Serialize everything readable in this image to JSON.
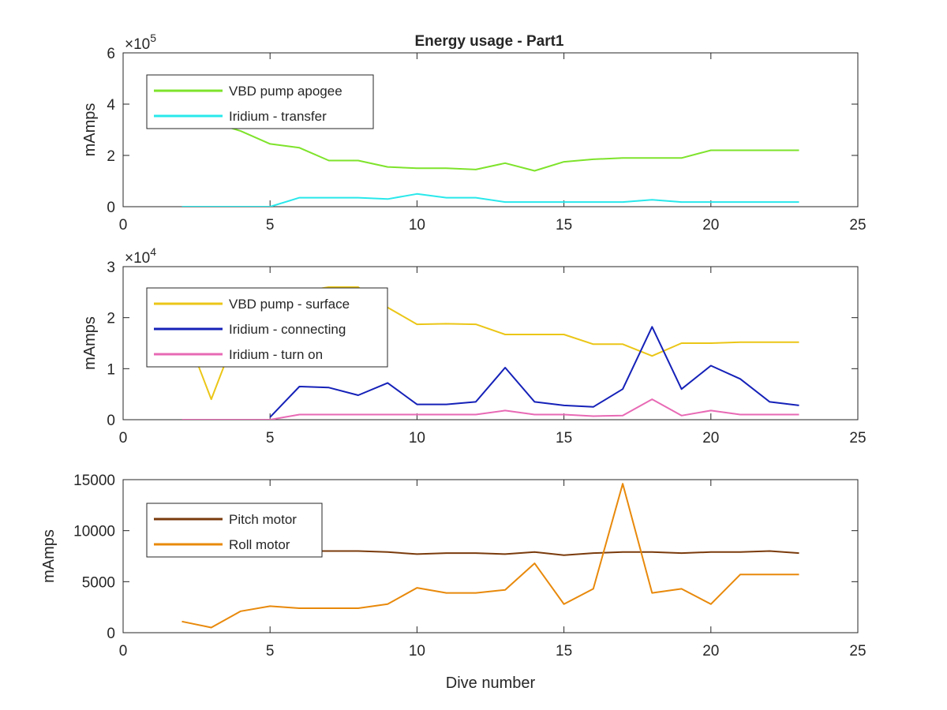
{
  "title": "Energy usage - Part1",
  "chart_data": [
    {
      "type": "line",
      "title": "Energy usage - Part1",
      "xlabel": "",
      "ylabel": "mAmps",
      "xlim": [
        0,
        25
      ],
      "ylim": [
        0,
        6
      ],
      "xticks": [
        0,
        5,
        10,
        15,
        20,
        25
      ],
      "yticks": [
        0,
        2,
        4,
        6
      ],
      "y_exponent_label": "×10",
      "y_exponent_power": "5",
      "legend_position": "top-left",
      "series": [
        {
          "name": "VBD pump apogee",
          "color": "#7ee32b",
          "x": [
            2,
            3,
            4,
            5,
            6,
            7,
            8,
            9,
            10,
            11,
            12,
            13,
            14,
            15,
            16,
            17,
            18,
            19,
            20,
            21,
            22,
            23
          ],
          "y": [
            3.2,
            3.3,
            2.95,
            2.45,
            2.3,
            1.8,
            1.8,
            1.55,
            1.5,
            1.5,
            1.45,
            1.7,
            1.4,
            1.75,
            1.85,
            1.9,
            1.9,
            1.9,
            2.2,
            2.2,
            2.2,
            2.2
          ]
        },
        {
          "name": "Iridium - transfer",
          "color": "#29e8eb",
          "x": [
            2,
            3,
            4,
            5,
            6,
            7,
            8,
            9,
            10,
            11,
            12,
            13,
            14,
            15,
            16,
            17,
            18,
            19,
            20,
            21,
            22,
            23
          ],
          "y": [
            0,
            0,
            0,
            0,
            0.35,
            0.35,
            0.35,
            0.3,
            0.5,
            0.35,
            0.35,
            0.18,
            0.18,
            0.18,
            0.18,
            0.18,
            0.27,
            0.18,
            0.18,
            0.18,
            0.18,
            0.18
          ]
        }
      ]
    },
    {
      "type": "line",
      "xlabel": "",
      "ylabel": "mAmps",
      "xlim": [
        0,
        25
      ],
      "ylim": [
        0,
        3
      ],
      "xticks": [
        0,
        5,
        10,
        15,
        20,
        25
      ],
      "yticks": [
        0,
        1,
        2,
        3
      ],
      "y_exponent_label": "×10",
      "y_exponent_power": "4",
      "legend_position": "top-left",
      "series": [
        {
          "name": "VBD pump - surface",
          "color": "#ebc617",
          "x": [
            2,
            3,
            4,
            5,
            6,
            7,
            8,
            9,
            10,
            11,
            12,
            13,
            14,
            15,
            16,
            17,
            18,
            19,
            20,
            21,
            22,
            23
          ],
          "y": [
            1.9,
            0.4,
            1.9,
            2.2,
            2.5,
            2.6,
            2.6,
            2.2,
            1.87,
            1.88,
            1.87,
            1.67,
            1.67,
            1.67,
            1.48,
            1.48,
            1.25,
            1.5,
            1.5,
            1.52,
            1.52,
            1.52
          ]
        },
        {
          "name": "Iridium - connecting",
          "color": "#1521b8",
          "x": [
            5,
            6,
            7,
            8,
            9,
            10,
            11,
            12,
            13,
            14,
            15,
            16,
            17,
            18,
            19,
            20,
            21,
            22,
            23
          ],
          "y": [
            0.05,
            0.65,
            0.63,
            0.48,
            0.72,
            0.3,
            0.3,
            0.35,
            1.02,
            0.35,
            0.28,
            0.25,
            0.6,
            1.82,
            0.6,
            1.06,
            0.8,
            0.35,
            0.28
          ]
        },
        {
          "name": "Iridium - turn on",
          "color": "#e86ab5",
          "x": [
            2,
            3,
            4,
            5,
            6,
            7,
            8,
            9,
            10,
            11,
            12,
            13,
            14,
            15,
            16,
            17,
            18,
            19,
            20,
            21,
            22,
            23
          ],
          "y": [
            0,
            0,
            0,
            0,
            0.1,
            0.1,
            0.1,
            0.1,
            0.1,
            0.1,
            0.1,
            0.18,
            0.1,
            0.1,
            0.07,
            0.08,
            0.4,
            0.08,
            0.18,
            0.1,
            0.1,
            0.1
          ]
        }
      ]
    },
    {
      "type": "line",
      "xlabel": "Dive number",
      "ylabel": "mAmps",
      "xlim": [
        0,
        25
      ],
      "ylim": [
        0,
        15000
      ],
      "xticks": [
        0,
        5,
        10,
        15,
        20,
        25
      ],
      "yticks": [
        0,
        5000,
        10000,
        15000
      ],
      "legend_position": "top-left",
      "series": [
        {
          "name": "Pitch motor",
          "color": "#7a3b0c",
          "x": [
            2,
            3,
            4,
            5,
            6,
            7,
            8,
            9,
            10,
            11,
            12,
            13,
            14,
            15,
            16,
            17,
            18,
            19,
            20,
            21,
            22,
            23
          ],
          "y": [
            8000,
            8000,
            8000,
            8000,
            8000,
            8000,
            8000,
            7900,
            7700,
            7800,
            7800,
            7700,
            7900,
            7600,
            7800,
            7900,
            7900,
            7800,
            7900,
            7900,
            8000,
            7800
          ]
        },
        {
          "name": "Roll motor",
          "color": "#e8890b",
          "x": [
            2,
            3,
            4,
            5,
            6,
            7,
            8,
            9,
            10,
            11,
            12,
            13,
            14,
            15,
            16,
            17,
            18,
            19,
            20,
            21,
            22,
            23
          ],
          "y": [
            1100,
            500,
            2100,
            2600,
            2400,
            2400,
            2400,
            2800,
            4400,
            3900,
            3900,
            4200,
            6800,
            2800,
            4300,
            14600,
            3900,
            4300,
            2800,
            5700,
            5700,
            5700
          ]
        }
      ]
    }
  ]
}
